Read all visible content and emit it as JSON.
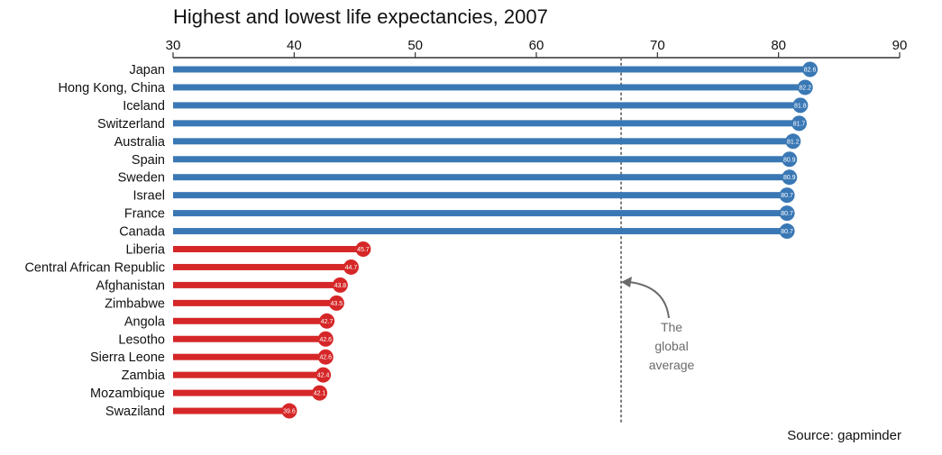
{
  "chart_data": {
    "type": "bar",
    "title": "Highest and lowest life expectancies, 2007",
    "xlabel": "",
    "ylabel": "",
    "xlim": [
      30,
      90
    ],
    "xticks": [
      30,
      40,
      50,
      60,
      70,
      80,
      90
    ],
    "categories": [
      "Japan",
      "Hong Kong, China",
      "Iceland",
      "Switzerland",
      "Australia",
      "Spain",
      "Sweden",
      "Israel",
      "France",
      "Canada",
      "Liberia",
      "Central African Republic",
      "Afghanistan",
      "Zimbabwe",
      "Angola",
      "Lesotho",
      "Sierra Leone",
      "Zambia",
      "Mozambique",
      "Swaziland"
    ],
    "values": [
      82.6,
      82.2,
      81.8,
      81.7,
      81.2,
      80.9,
      80.9,
      80.7,
      80.7,
      80.7,
      45.7,
      44.7,
      43.8,
      43.5,
      42.7,
      42.6,
      42.6,
      42.4,
      42.1,
      39.6
    ],
    "value_labels": [
      "82.6",
      "82.2",
      "81.8",
      "81.7",
      "81.2",
      "80.9",
      "80.9",
      "80.7",
      "80.7",
      "80.7",
      "45.7",
      "44.7",
      "43.8",
      "43.5",
      "42.7",
      "42.6",
      "42.6",
      "42.4",
      "42.1",
      "39.6"
    ],
    "groups": [
      "highest",
      "highest",
      "highest",
      "highest",
      "highest",
      "highest",
      "highest",
      "highest",
      "highest",
      "highest",
      "lowest",
      "lowest",
      "lowest",
      "lowest",
      "lowest",
      "lowest",
      "lowest",
      "lowest",
      "lowest",
      "lowest"
    ],
    "colors": {
      "highest": "#3a78b5",
      "lowest": "#d62728",
      "reference": "#777777",
      "annotation": "#6b6b6b"
    },
    "reference_line": {
      "value": 67,
      "style": "dotted"
    },
    "annotation": [
      "The",
      "global",
      "average"
    ],
    "source": "Source: gapminder",
    "grid": false,
    "legend": "none"
  }
}
